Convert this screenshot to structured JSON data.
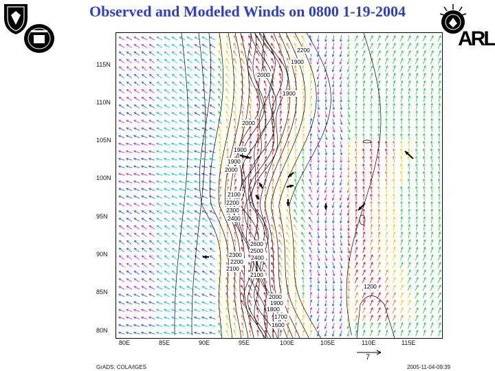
{
  "title": "Observed and Modeled Winds on 0800 1-19-2004",
  "logos": {
    "left_shield": "shield-emblem",
    "left_seal": "seal-emblem",
    "right_emblem": "arl-emblem",
    "right_text": "ARL"
  },
  "map": {
    "y_ticks": [
      "115N",
      "110N",
      "105N",
      "100N",
      "95N",
      "90N",
      "85N",
      "80N"
    ],
    "x_ticks": [
      "80E",
      "85E",
      "90E",
      "95E",
      "100E",
      "105E",
      "110E",
      "115E"
    ],
    "contour_labels": [
      "2200",
      "1900",
      "2000",
      "1900",
      "2000",
      "1900",
      "1900",
      "2000",
      "2100",
      "2200",
      "2300",
      "2400",
      "2600",
      "2500",
      "2400",
      "2300",
      "2200",
      "2100",
      "2100",
      "2000",
      "1900",
      "1800",
      "1700",
      "1600",
      "1200"
    ],
    "colors": {
      "calm": "#2f6be0",
      "light": "#1ec8c8",
      "moderate": "#2fd050",
      "strong": "#e8d020",
      "stronger": "#f08a20",
      "max": "#e8202a",
      "violet": "#b040e0",
      "observed": "#000000",
      "contour": "#000000"
    }
  },
  "reference_vector": {
    "value": "7"
  },
  "footer": {
    "left": "GrADS: COLA/IGES",
    "right": "2005-11-04-09:39"
  }
}
